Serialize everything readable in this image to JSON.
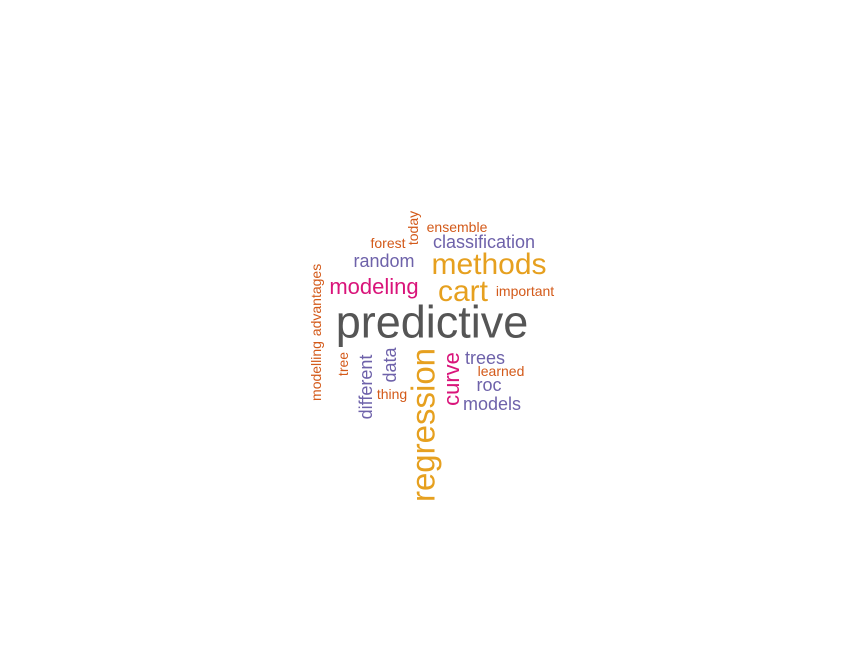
{
  "palette": {
    "gray": "#555555",
    "gold": "#e6a01f",
    "magenta": "#d9147a",
    "purple": "#6e62aa",
    "orange": "#d35a1a"
  },
  "words": [
    {
      "text": "predictive",
      "color": "gray"
    },
    {
      "text": "regression",
      "color": "gold"
    },
    {
      "text": "methods",
      "color": "gold"
    },
    {
      "text": "cart",
      "color": "gold"
    },
    {
      "text": "modeling",
      "color": "magenta"
    },
    {
      "text": "curve",
      "color": "magenta"
    },
    {
      "text": "classification",
      "color": "purple"
    },
    {
      "text": "random",
      "color": "purple"
    },
    {
      "text": "trees",
      "color": "purple"
    },
    {
      "text": "roc",
      "color": "purple"
    },
    {
      "text": "models",
      "color": "purple"
    },
    {
      "text": "data",
      "color": "purple"
    },
    {
      "text": "different",
      "color": "purple"
    },
    {
      "text": "ensemble",
      "color": "orange"
    },
    {
      "text": "forest",
      "color": "orange"
    },
    {
      "text": "today",
      "color": "orange"
    },
    {
      "text": "important",
      "color": "orange"
    },
    {
      "text": "advantages",
      "color": "orange"
    },
    {
      "text": "modelling",
      "color": "orange"
    },
    {
      "text": "tree",
      "color": "orange"
    },
    {
      "text": "thing",
      "color": "orange"
    },
    {
      "text": "learned",
      "color": "orange"
    }
  ]
}
